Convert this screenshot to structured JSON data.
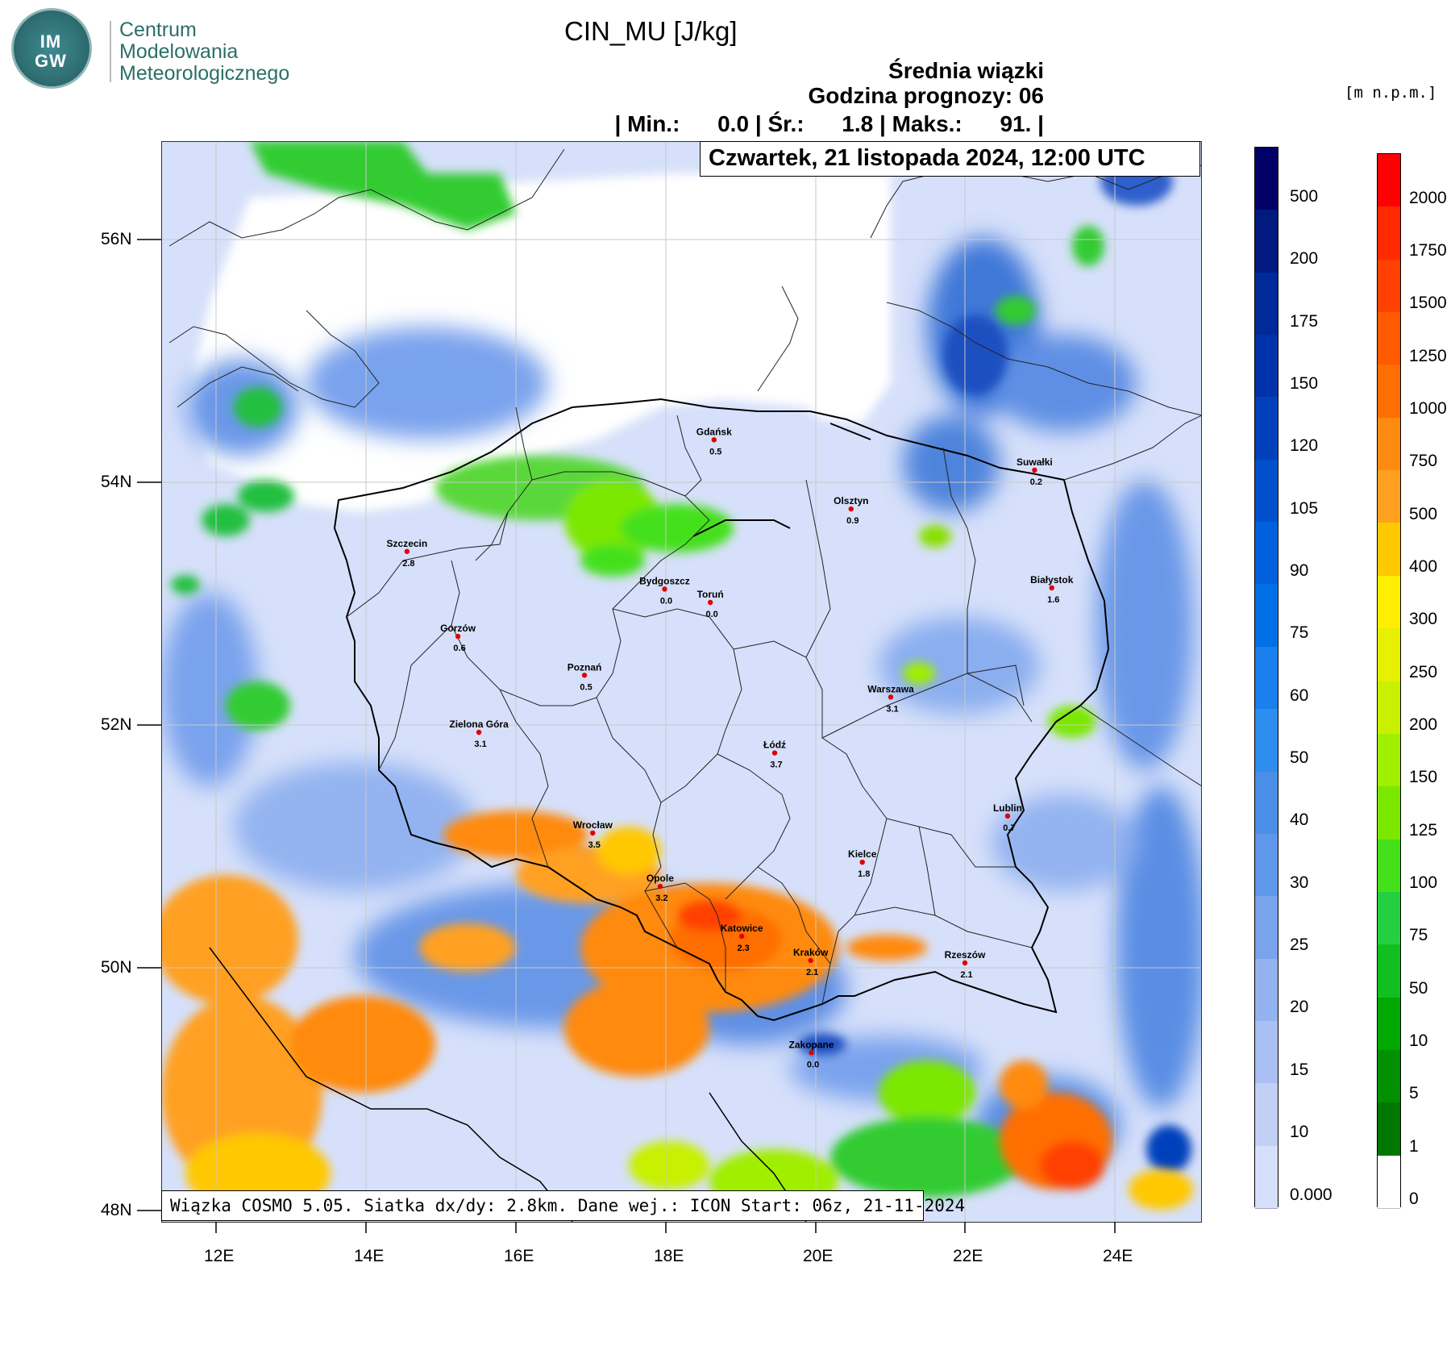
{
  "org": {
    "logo_text": "IM GW",
    "name_lines": [
      "Centrum",
      "Modelowania",
      "Meteorologicznego"
    ]
  },
  "title": "CIN_MU [J/kg]",
  "subtitle_lines": [
    "Średnia wiązki",
    "Godzina prognozy: 06"
  ],
  "stats": {
    "min_label": "| Min.:",
    "min": "0.0",
    "avg_label": "| Śr.:",
    "avg": "1.8",
    "max_label": "| Maks.:",
    "max": "91."
  },
  "date": "Czwartek, 21 listopada 2024, 12:00 UTC",
  "footer": "Wiązka COSMO 5.05. Siatka dx/dy: 2.8km. Dane wej.: ICON Start: 06z, 21-11-2024",
  "units_label": "[m n.p.m.]",
  "axes": {
    "lat_labels": [
      "56N",
      "54N",
      "52N",
      "50N",
      "48N"
    ],
    "lon_labels": [
      "12E",
      "14E",
      "16E",
      "18E",
      "20E",
      "22E",
      "24E"
    ]
  },
  "cities": [
    {
      "name": "Gdańsk",
      "value": "0.5",
      "lon": 18.65,
      "lat": 54.35
    },
    {
      "name": "Suwałki",
      "value": "0.2",
      "lon": 22.93,
      "lat": 54.1
    },
    {
      "name": "Olsztyn",
      "value": "0.9",
      "lon": 20.48,
      "lat": 53.78
    },
    {
      "name": "Szczecin",
      "value": "2.8",
      "lon": 14.55,
      "lat": 53.43
    },
    {
      "name": "Bydgoszcz",
      "value": "0.0",
      "lon": 17.99,
      "lat": 53.12
    },
    {
      "name": "Toruń",
      "value": "0.0",
      "lon": 18.6,
      "lat": 53.01
    },
    {
      "name": "Białystok",
      "value": "1.6",
      "lon": 23.16,
      "lat": 53.13
    },
    {
      "name": "Gorzów",
      "value": "0.6",
      "lon": 15.23,
      "lat": 52.73
    },
    {
      "name": "Poznań",
      "value": "0.5",
      "lon": 16.92,
      "lat": 52.41
    },
    {
      "name": "Warszawa",
      "value": "3.1",
      "lon": 21.01,
      "lat": 52.23
    },
    {
      "name": "Zielona Góra",
      "value": "3.1",
      "lon": 15.51,
      "lat": 51.94
    },
    {
      "name": "Łódź",
      "value": "3.7",
      "lon": 19.46,
      "lat": 51.77
    },
    {
      "name": "Lublin",
      "value": "0.7",
      "lon": 22.57,
      "lat": 51.25
    },
    {
      "name": "Wrocław",
      "value": "3.5",
      "lon": 17.03,
      "lat": 51.11
    },
    {
      "name": "Kielce",
      "value": "1.8",
      "lon": 20.63,
      "lat": 50.87
    },
    {
      "name": "Opole",
      "value": "3.2",
      "lon": 17.93,
      "lat": 50.67
    },
    {
      "name": "Katowice",
      "value": "2.3",
      "lon": 19.02,
      "lat": 50.26
    },
    {
      "name": "Kraków",
      "value": "2.1",
      "lon": 19.94,
      "lat": 50.06
    },
    {
      "name": "Rzeszów",
      "value": "2.1",
      "lon": 22.0,
      "lat": 50.04
    },
    {
      "name": "Zakopane",
      "value": "0.0",
      "lon": 19.95,
      "lat": 49.3
    }
  ],
  "colorbar_cin": {
    "labels": [
      "500",
      "200",
      "175",
      "150",
      "120",
      "105",
      "90",
      "75",
      "60",
      "50",
      "40",
      "30",
      "25",
      "20",
      "15",
      "10",
      "0.000"
    ],
    "colors": [
      "#000066",
      "#001a80",
      "#002a99",
      "#0033aa",
      "#0040bb",
      "#0050cc",
      "#0060dd",
      "#0070e6",
      "#1a80ee",
      "#2e8ef0",
      "#4a8ee8",
      "#5f97ea",
      "#7aa3ed",
      "#93b3f0",
      "#aabff3",
      "#c2d0f6",
      "#d6e0fa"
    ]
  },
  "colorbar_terrain": {
    "labels": [
      "2000",
      "1750",
      "1500",
      "1250",
      "1000",
      "750",
      "500",
      "400",
      "300",
      "250",
      "200",
      "150",
      "125",
      "100",
      "75",
      "50",
      "10",
      "5",
      "1",
      "0"
    ],
    "colors": [
      "#ff0000",
      "#ff2a00",
      "#ff4000",
      "#ff5a00",
      "#ff6e00",
      "#ff8a10",
      "#ffa020",
      "#ffc800",
      "#ffee00",
      "#e6f000",
      "#c8f000",
      "#a0ee00",
      "#7ce800",
      "#44e01a",
      "#22d040",
      "#10c020",
      "#00a800",
      "#009000",
      "#007700",
      "#ffffff"
    ]
  }
}
